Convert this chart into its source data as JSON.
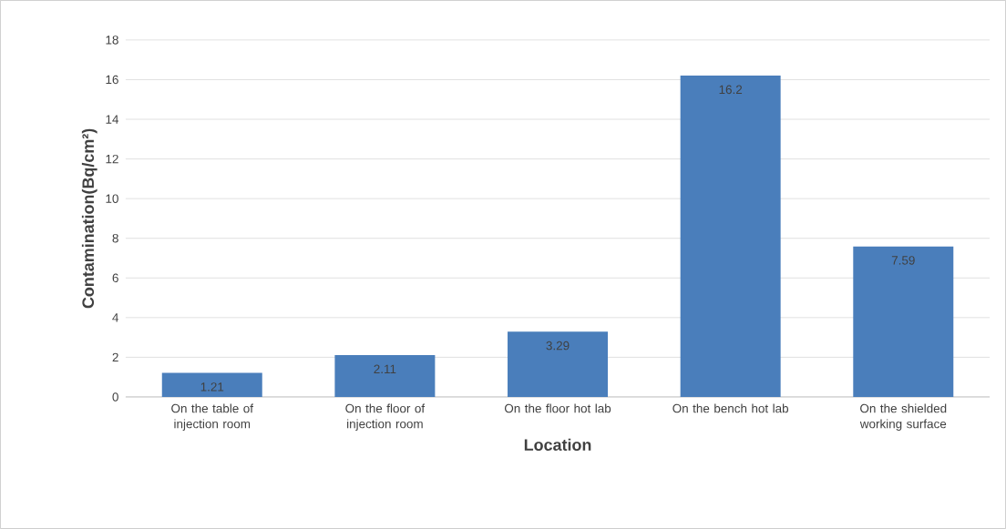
{
  "chart_data": {
    "type": "bar",
    "xlabel": "Location",
    "ylabel": "Contamination(Bq/cm²)",
    "categories": [
      "On the table of injection room",
      "On the floor of injection room",
      "On the floor hot lab",
      "On the bench hot lab",
      "On the shielded working surface"
    ],
    "values": [
      1.21,
      2.11,
      3.29,
      16.2,
      7.59
    ],
    "color": "#4a7ebb",
    "ylim": [
      0,
      18
    ],
    "yticks": [
      0,
      2,
      4,
      6,
      8,
      10,
      12,
      14,
      16,
      18
    ],
    "grid": "y",
    "data_labels": true
  }
}
